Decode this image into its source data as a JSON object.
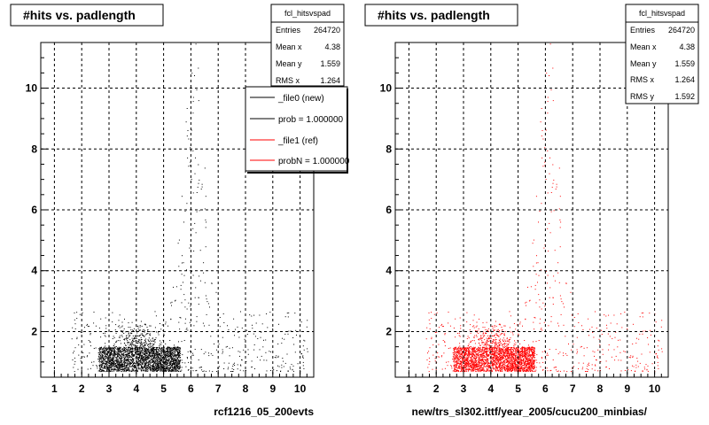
{
  "chart_data": [
    {
      "type": "scatter",
      "title": "#hits vs. padlength",
      "xlabel": "rcf1216_05_200evts",
      "ylabel": "",
      "xlim": [
        0.5,
        10.5
      ],
      "ylim": [
        0.5,
        11.5
      ],
      "xticks": [
        "1",
        "2",
        "3",
        "4",
        "5",
        "6",
        "7",
        "8",
        "9",
        "10"
      ],
      "yticks": [
        "2",
        "4",
        "6",
        "8",
        "10"
      ],
      "grid": true,
      "marker_color": "#000000",
      "stats": {
        "name": "fcl_hitsvspad",
        "rows": [
          {
            "label": "Entries",
            "value": "264720"
          },
          {
            "label": "Mean x",
            "value": "4.38"
          },
          {
            "label": "Mean y",
            "value": "1.559"
          },
          {
            "label": "RMS x",
            "value": "1.264"
          }
        ]
      },
      "legend": {
        "placement": "top-right",
        "entries": [
          {
            "label": "_file0 (new)",
            "color": "#000000"
          },
          {
            "label": "prob = 1.000000",
            "color": "#000000"
          },
          {
            "label": "_file1 (ref)",
            "color": "#ff0000"
          },
          {
            "label": "probN = 1.000000",
            "color": "#ff0000"
          }
        ]
      },
      "dense_region": {
        "x": [
          2.6,
          5.6
        ],
        "y": [
          0.7,
          1.5
        ]
      }
    },
    {
      "type": "scatter",
      "title": "#hits vs. padlength",
      "xlabel": "new/trs_sl302.ittf/year_2005/cucu200_minbias/",
      "ylabel": "",
      "xlim": [
        0.5,
        10.5
      ],
      "ylim": [
        0.5,
        11.5
      ],
      "xticks": [
        "1",
        "2",
        "3",
        "4",
        "5",
        "6",
        "7",
        "8",
        "9",
        "10"
      ],
      "yticks": [
        "2",
        "4",
        "6",
        "8",
        "10"
      ],
      "grid": true,
      "marker_color": "#ff0000",
      "stats": {
        "name": "fcl_hitsvspad",
        "rows": [
          {
            "label": "Entries",
            "value": "264720"
          },
          {
            "label": "Mean x",
            "value": "4.38"
          },
          {
            "label": "Mean y",
            "value": "1.559"
          },
          {
            "label": "RMS x",
            "value": "1.264"
          },
          {
            "label": "RMS y",
            "value": "1.592"
          }
        ]
      },
      "dense_region": {
        "x": [
          2.6,
          5.6
        ],
        "y": [
          0.7,
          1.5
        ]
      }
    }
  ]
}
